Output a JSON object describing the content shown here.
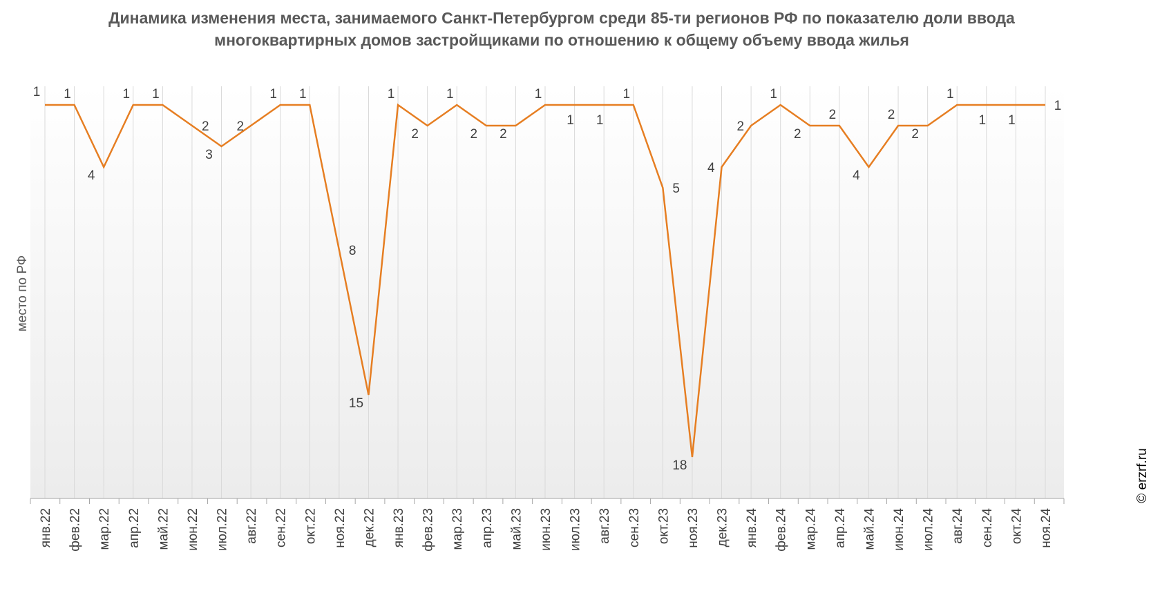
{
  "chart_data": {
    "type": "line",
    "title": "Динамика изменения места, занимаемого Санкт-Петербургом среди 85-ти регионов РФ по показателю доли ввода многоквартирных домов застройщиками по отношению к общему объему ввода жилья",
    "ylabel": "место по РФ",
    "xlabel": "",
    "categories": [
      "янв.22",
      "фев.22",
      "мар.22",
      "апр.22",
      "май.22",
      "июн.22",
      "июл.22",
      "авг.22",
      "сен.22",
      "окт.22",
      "ноя.22",
      "дек.22",
      "янв.23",
      "фев.23",
      "мар.23",
      "апр.23",
      "май.23",
      "июн.23",
      "июл.23",
      "авг.23",
      "сен.23",
      "окт.23",
      "ноя.23",
      "дек.23",
      "янв.24",
      "фев.24",
      "мар.24",
      "апр.24",
      "май.24",
      "июн.24",
      "июл.24",
      "авг.24",
      "сен.24",
      "окт.24",
      "ноя.24"
    ],
    "series": [
      {
        "values": [
          1,
          1,
          4,
          1,
          1,
          2,
          3,
          2,
          1,
          1,
          8,
          15,
          1,
          2,
          1,
          2,
          2,
          1,
          1,
          1,
          1,
          5,
          18,
          4,
          2,
          1,
          2,
          2,
          4,
          2,
          2,
          1,
          1,
          1,
          1
        ]
      }
    ],
    "ylim": [
      20,
      1
    ],
    "y_axis_reversed": true,
    "grid": "vertical",
    "legend": "none",
    "line_color": "#E67E22",
    "data_labels": true
  },
  "watermark": "© erzrf.ru"
}
